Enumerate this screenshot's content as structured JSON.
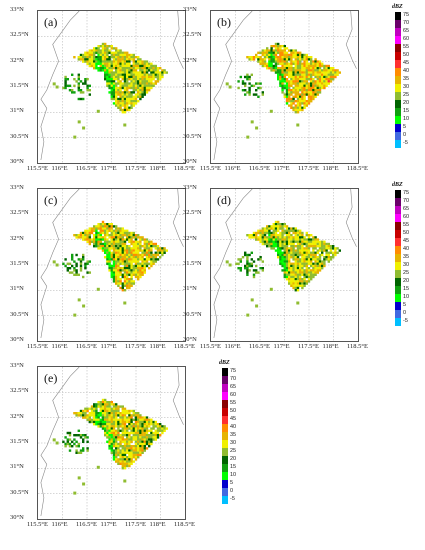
{
  "figure": {
    "panels": [
      {
        "id": "a",
        "label": "(a)",
        "has_colorbar": false,
        "seed": 11,
        "intensity": 0.45
      },
      {
        "id": "b",
        "label": "(b)",
        "has_colorbar": true,
        "seed": 23,
        "intensity": 0.85
      },
      {
        "id": "c",
        "label": "(c)",
        "has_colorbar": false,
        "seed": 37,
        "intensity": 0.7
      },
      {
        "id": "d",
        "label": "(d)",
        "has_colorbar": true,
        "seed": 41,
        "intensity": 0.5
      },
      {
        "id": "e",
        "label": "(e)",
        "has_colorbar": true,
        "seed": 53,
        "intensity": 0.6
      }
    ],
    "x_ticks": [
      "115.5°E",
      "116°E",
      "116.5°E",
      "117°E",
      "117.5°E",
      "118°E",
      "118.5°E"
    ],
    "y_ticks": [
      "30°N",
      "30.5°N",
      "31°N",
      "31.5°N",
      "32°N",
      "32.5°N",
      "33°N"
    ]
  },
  "chart_data": {
    "type": "heatmap",
    "title": "",
    "xlabel": "",
    "ylabel": "",
    "xlim": [
      115.5,
      118.5
    ],
    "ylim": [
      30,
      33
    ],
    "colorbar": {
      "unit": "dBZ",
      "ticks": [
        "75",
        "70",
        "65",
        "60",
        "55",
        "50",
        "45",
        "40",
        "35",
        "30",
        "25",
        "20",
        "15",
        "10",
        "5",
        "0",
        "-5"
      ],
      "colors": [
        "#000000",
        "#6a006a",
        "#c000c0",
        "#ff00ff",
        "#8b0000",
        "#c80000",
        "#ff3030",
        "#ff8c00",
        "#e6b400",
        "#f0f000",
        "#8fbc30",
        "#006400",
        "#10a010",
        "#00ff00",
        "#0000cd",
        "#4169e1",
        "#00bfff"
      ]
    }
  }
}
